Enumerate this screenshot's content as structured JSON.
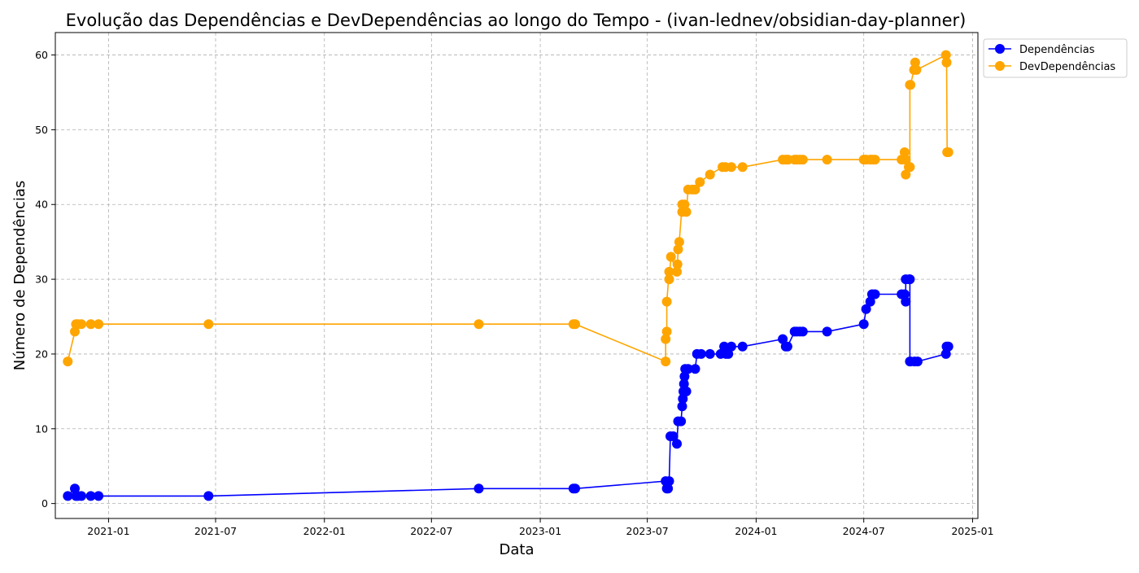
{
  "chart_data": {
    "type": "line",
    "title": "Evolução das Dependências e DevDependências ao longo do Tempo - (ivan-lednev/obsidian-day-planner)",
    "xlabel": "Data",
    "ylabel": "Número de Dependências",
    "x_type": "date",
    "xlim": [
      "2020-10-03",
      "2025-01-10"
    ],
    "ylim": [
      -2,
      63
    ],
    "x_ticks": [
      {
        "date": "2021-01-01",
        "label": "2021-01"
      },
      {
        "date": "2021-07-01",
        "label": "2021-07"
      },
      {
        "date": "2022-01-01",
        "label": "2022-01"
      },
      {
        "date": "2022-07-01",
        "label": "2022-07"
      },
      {
        "date": "2023-01-01",
        "label": "2023-01"
      },
      {
        "date": "2023-07-01",
        "label": "2023-07"
      },
      {
        "date": "2024-01-01",
        "label": "2024-01"
      },
      {
        "date": "2024-07-01",
        "label": "2024-07"
      },
      {
        "date": "2025-01-01",
        "label": "2025-01"
      }
    ],
    "y_ticks": [
      0,
      10,
      20,
      30,
      40,
      50,
      60
    ],
    "grid": true,
    "legend_position": "upper-right-outside",
    "series": [
      {
        "name": "Dependências",
        "color": "#0000ff",
        "points": [
          [
            "2020-10-24",
            1
          ],
          [
            "2020-11-05",
            2
          ],
          [
            "2020-11-07",
            1
          ],
          [
            "2020-11-10",
            1
          ],
          [
            "2020-11-16",
            1
          ],
          [
            "2020-12-02",
            1
          ],
          [
            "2020-12-15",
            1
          ],
          [
            "2021-06-19",
            1
          ],
          [
            "2022-09-19",
            2
          ],
          [
            "2023-02-26",
            2
          ],
          [
            "2023-03-01",
            2
          ],
          [
            "2023-08-01",
            3
          ],
          [
            "2023-08-03",
            2
          ],
          [
            "2023-08-05",
            2
          ],
          [
            "2023-08-07",
            3
          ],
          [
            "2023-08-09",
            9
          ],
          [
            "2023-08-14",
            9
          ],
          [
            "2023-08-20",
            8
          ],
          [
            "2023-08-22",
            11
          ],
          [
            "2023-08-27",
            11
          ],
          [
            "2023-08-29",
            13
          ],
          [
            "2023-08-30",
            14
          ],
          [
            "2023-08-31",
            15
          ],
          [
            "2023-09-01",
            16
          ],
          [
            "2023-09-02",
            17
          ],
          [
            "2023-09-03",
            18
          ],
          [
            "2023-09-05",
            15
          ],
          [
            "2023-09-08",
            18
          ],
          [
            "2023-09-20",
            18
          ],
          [
            "2023-09-23",
            20
          ],
          [
            "2023-09-30",
            20
          ],
          [
            "2023-10-15",
            20
          ],
          [
            "2023-11-02",
            20
          ],
          [
            "2023-11-08",
            21
          ],
          [
            "2023-11-11",
            20
          ],
          [
            "2023-11-15",
            20
          ],
          [
            "2023-11-20",
            21
          ],
          [
            "2023-12-09",
            21
          ],
          [
            "2024-02-15",
            22
          ],
          [
            "2024-02-20",
            21
          ],
          [
            "2024-02-23",
            21
          ],
          [
            "2024-03-06",
            23
          ],
          [
            "2024-03-10",
            23
          ],
          [
            "2024-03-15",
            23
          ],
          [
            "2024-03-20",
            23
          ],
          [
            "2024-04-30",
            23
          ],
          [
            "2024-07-01",
            24
          ],
          [
            "2024-07-05",
            26
          ],
          [
            "2024-07-12",
            27
          ],
          [
            "2024-07-15",
            28
          ],
          [
            "2024-07-20",
            28
          ],
          [
            "2024-09-03",
            28
          ],
          [
            "2024-09-08",
            28
          ],
          [
            "2024-09-10",
            27
          ],
          [
            "2024-09-10",
            30
          ],
          [
            "2024-09-16",
            30
          ],
          [
            "2024-09-17",
            30
          ],
          [
            "2024-09-17",
            19
          ],
          [
            "2024-09-18",
            19
          ],
          [
            "2024-09-25",
            19
          ],
          [
            "2024-09-30",
            19
          ],
          [
            "2024-11-17",
            20
          ],
          [
            "2024-11-18",
            21
          ],
          [
            "2024-11-21",
            21
          ]
        ]
      },
      {
        "name": "DevDependências",
        "color": "#ffa500",
        "points": [
          [
            "2020-10-24",
            19
          ],
          [
            "2020-11-05",
            23
          ],
          [
            "2020-11-07",
            24
          ],
          [
            "2020-11-10",
            24
          ],
          [
            "2020-11-16",
            24
          ],
          [
            "2020-12-02",
            24
          ],
          [
            "2020-12-15",
            24
          ],
          [
            "2021-06-19",
            24
          ],
          [
            "2022-09-19",
            24
          ],
          [
            "2023-02-26",
            24
          ],
          [
            "2023-03-01",
            24
          ],
          [
            "2023-08-01",
            19
          ],
          [
            "2023-08-01",
            22
          ],
          [
            "2023-08-03",
            23
          ],
          [
            "2023-08-03",
            27
          ],
          [
            "2023-08-07",
            31
          ],
          [
            "2023-08-07",
            30
          ],
          [
            "2023-08-10",
            33
          ],
          [
            "2023-08-20",
            31
          ],
          [
            "2023-08-21",
            32
          ],
          [
            "2023-08-22",
            34
          ],
          [
            "2023-08-24",
            35
          ],
          [
            "2023-08-29",
            40
          ],
          [
            "2023-08-29",
            39
          ],
          [
            "2023-09-02",
            40
          ],
          [
            "2023-09-05",
            39
          ],
          [
            "2023-09-08",
            42
          ],
          [
            "2023-09-15",
            42
          ],
          [
            "2023-09-20",
            42
          ],
          [
            "2023-09-28",
            43
          ],
          [
            "2023-10-15",
            44
          ],
          [
            "2023-11-05",
            45
          ],
          [
            "2023-11-10",
            45
          ],
          [
            "2023-11-20",
            45
          ],
          [
            "2023-12-09",
            45
          ],
          [
            "2024-02-15",
            46
          ],
          [
            "2024-02-20",
            46
          ],
          [
            "2024-02-24",
            46
          ],
          [
            "2024-03-06",
            46
          ],
          [
            "2024-03-10",
            46
          ],
          [
            "2024-03-15",
            46
          ],
          [
            "2024-03-20",
            46
          ],
          [
            "2024-04-30",
            46
          ],
          [
            "2024-07-01",
            46
          ],
          [
            "2024-07-05",
            46
          ],
          [
            "2024-07-12",
            46
          ],
          [
            "2024-07-15",
            46
          ],
          [
            "2024-07-20",
            46
          ],
          [
            "2024-09-03",
            46
          ],
          [
            "2024-09-08",
            47
          ],
          [
            "2024-09-10",
            44
          ],
          [
            "2024-09-10",
            46
          ],
          [
            "2024-09-15",
            45
          ],
          [
            "2024-09-17",
            45
          ],
          [
            "2024-09-17",
            56
          ],
          [
            "2024-09-18",
            56
          ],
          [
            "2024-09-24",
            58
          ],
          [
            "2024-09-26",
            59
          ],
          [
            "2024-09-28",
            58
          ],
          [
            "2024-11-17",
            60
          ],
          [
            "2024-11-18",
            59
          ],
          [
            "2024-11-19",
            47
          ],
          [
            "2024-11-21",
            47
          ]
        ]
      }
    ]
  }
}
